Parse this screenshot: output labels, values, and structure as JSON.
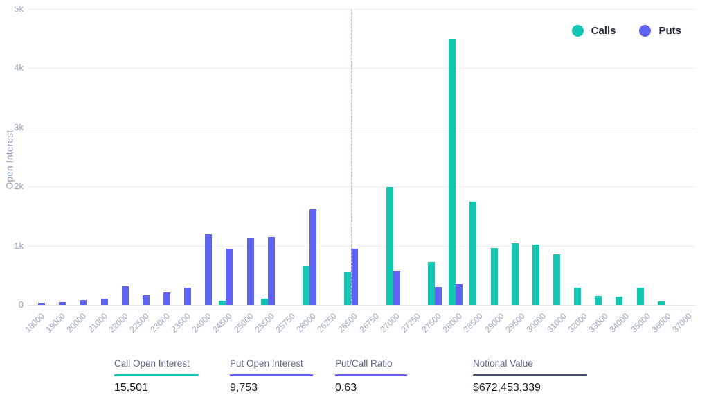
{
  "chart": {
    "ylabel": "Open Interest",
    "y_ticks": [
      "0",
      "1k",
      "2k",
      "3k",
      "4k",
      "5k"
    ],
    "legend": [
      {
        "label": "Calls",
        "color": "#13c6b2"
      },
      {
        "label": "Puts",
        "color": "#5e64f1"
      }
    ],
    "colors": {
      "calls": "#13c6b2",
      "puts": "#5e64f1",
      "axis_text": "#97a6ba",
      "grid": "#eef1f6",
      "marker_line": "#f3a6a6"
    }
  },
  "chart_data": {
    "type": "bar",
    "title": "",
    "xlabel": "",
    "ylabel": "Open Interest",
    "ylim": [
      0,
      5000
    ],
    "y_tick_step": 1000,
    "grid": true,
    "legend_position": "top-right",
    "categories": [
      "18000",
      "19000",
      "20000",
      "21000",
      "22000",
      "22500",
      "23000",
      "23500",
      "24000",
      "24500",
      "25000",
      "25500",
      "25750",
      "26000",
      "26250",
      "26500",
      "26750",
      "27000",
      "27250",
      "27500",
      "28000",
      "28500",
      "29000",
      "29500",
      "30000",
      "31000",
      "32000",
      "33000",
      "34000",
      "35000",
      "36000",
      "37000"
    ],
    "series": [
      {
        "name": "Calls",
        "color": "#13c6b2",
        "values": [
          0,
          0,
          0,
          0,
          0,
          0,
          0,
          0,
          0,
          70,
          0,
          100,
          0,
          650,
          0,
          560,
          0,
          1990,
          0,
          730,
          4500,
          1740,
          965,
          1045,
          1020,
          860,
          290,
          150,
          140,
          290,
          60,
          0
        ]
      },
      {
        "name": "Puts",
        "color": "#5e64f1",
        "values": [
          35,
          50,
          80,
          100,
          320,
          160,
          210,
          290,
          1200,
          950,
          1120,
          1150,
          0,
          1620,
          0,
          950,
          0,
          570,
          0,
          300,
          350,
          0,
          0,
          0,
          0,
          0,
          0,
          0,
          0,
          0,
          0,
          0
        ]
      }
    ],
    "annotations": [
      {
        "type": "vline",
        "at_category": "26500",
        "style": "dashed",
        "color": "#f3a6a6"
      }
    ]
  },
  "stats": [
    {
      "label": "Call Open Interest",
      "value": "15,501",
      "underline_color": "#13c6b2"
    },
    {
      "label": "Put Open Interest",
      "value": "9,753",
      "underline_color": "#5e64f1"
    },
    {
      "label": "Put/Call Ratio",
      "value": "0.63",
      "underline_color": "#685ef0"
    },
    {
      "label": "Notional Value",
      "value": "$672,453,339",
      "underline_color": "#414f63"
    }
  ]
}
